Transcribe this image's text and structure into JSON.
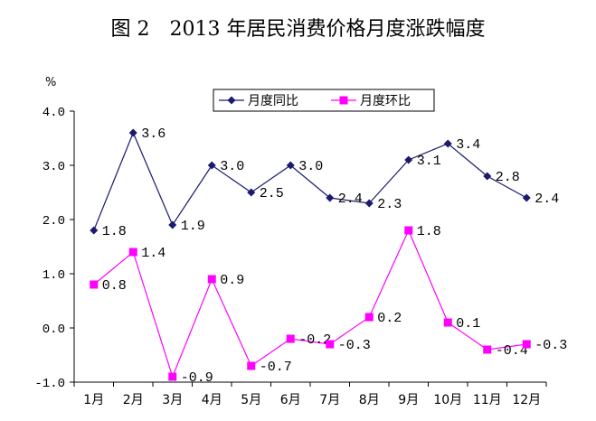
{
  "chart_data": {
    "type": "line",
    "title": "图 2　2013 年居民消费价格月度涨跌幅度",
    "unit": "%",
    "categories": [
      "1月",
      "2月",
      "3月",
      "4月",
      "5月",
      "6月",
      "7月",
      "8月",
      "9月",
      "10月",
      "11月",
      "12月"
    ],
    "y_ticks": [
      "4.0",
      "3.0",
      "2.0",
      "1.0",
      "0.0",
      "-1.0"
    ],
    "ylim": [
      -1.0,
      4.0
    ],
    "legend_position": "top",
    "series": [
      {
        "name": "月度同比",
        "color": "#1a1a6e",
        "marker": "diamond",
        "values": [
          1.8,
          3.6,
          1.9,
          3.0,
          2.5,
          3.0,
          2.4,
          2.3,
          3.1,
          3.4,
          2.8,
          2.4
        ],
        "labels": [
          "1.8",
          "3.6",
          "1.9",
          "3.0",
          "2.5",
          "3.0",
          "2.4",
          "2.3",
          "3.1",
          "3.4",
          "2.8",
          "2.4"
        ]
      },
      {
        "name": "月度环比",
        "color": "#ff00ff",
        "marker": "square",
        "values": [
          0.8,
          1.4,
          -0.9,
          0.9,
          -0.7,
          -0.2,
          -0.3,
          0.2,
          1.8,
          0.1,
          -0.4,
          -0.3
        ],
        "labels": [
          "0.8",
          "1.4",
          "-0.9",
          "0.9",
          "-0.7",
          "-0.2",
          "-0.3",
          "0.2",
          "1.8",
          "0.1",
          "-0.4",
          "-0.3"
        ]
      }
    ]
  }
}
